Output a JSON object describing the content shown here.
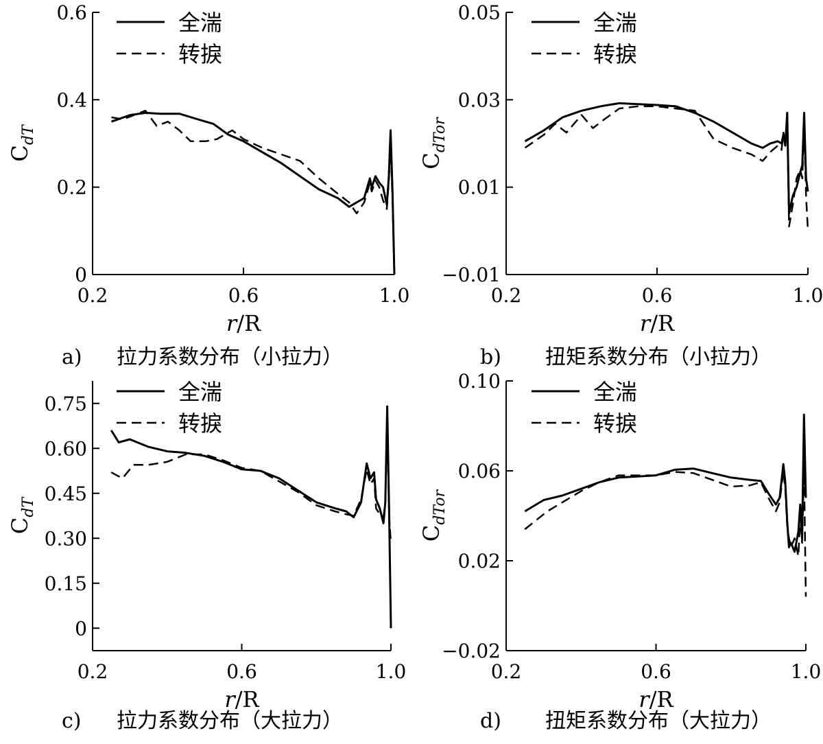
{
  "chart_data": [
    {
      "type": "line",
      "caption_letter": "a)",
      "caption": "拉力系数分布（小拉力）",
      "xlabel_italic": "r",
      "xlabel_rest": "/R",
      "ylabel_main": "C",
      "ylabel_sub": "dT",
      "xlim": [
        0.2,
        1.0
      ],
      "ylim": [
        0,
        0.6
      ],
      "xticks": [
        "0.2",
        "0.6",
        "1.0"
      ],
      "xtick_values": [
        0.2,
        0.6,
        1.0
      ],
      "yticks": [
        "0",
        "0.2",
        "0.4",
        "0.6"
      ],
      "ytick_values": [
        0,
        0.2,
        0.4,
        0.6
      ],
      "legend": [
        "全湍",
        "转捩"
      ],
      "series": [
        {
          "name": "全湍",
          "style": "solid",
          "x": [
            0.25,
            0.3,
            0.34,
            0.38,
            0.43,
            0.48,
            0.52,
            0.56,
            0.6,
            0.65,
            0.7,
            0.75,
            0.8,
            0.85,
            0.88,
            0.9,
            0.92,
            0.935,
            0.94,
            0.95,
            0.96,
            0.97,
            0.98,
            0.985,
            0.99,
            0.995,
            1.0
          ],
          "y": [
            0.35,
            0.365,
            0.37,
            0.368,
            0.368,
            0.355,
            0.345,
            0.32,
            0.305,
            0.28,
            0.255,
            0.225,
            0.195,
            0.175,
            0.155,
            0.165,
            0.175,
            0.22,
            0.2,
            0.225,
            0.21,
            0.2,
            0.16,
            0.22,
            0.33,
            0.19,
            0.0
          ]
        },
        {
          "name": "转捩",
          "style": "dash",
          "x": [
            0.25,
            0.28,
            0.31,
            0.34,
            0.37,
            0.4,
            0.43,
            0.46,
            0.5,
            0.53,
            0.57,
            0.6,
            0.65,
            0.7,
            0.75,
            0.8,
            0.85,
            0.88,
            0.9,
            0.92,
            0.935,
            0.94,
            0.95,
            0.96,
            0.97,
            0.98,
            0.985,
            0.99,
            0.995,
            1.0
          ],
          "y": [
            0.36,
            0.355,
            0.365,
            0.375,
            0.34,
            0.35,
            0.33,
            0.305,
            0.305,
            0.31,
            0.33,
            0.31,
            0.29,
            0.275,
            0.26,
            0.22,
            0.185,
            0.165,
            0.14,
            0.165,
            0.21,
            0.19,
            0.215,
            0.2,
            0.17,
            0.15,
            0.21,
            0.3,
            0.17,
            0.0
          ]
        }
      ]
    },
    {
      "type": "line",
      "caption_letter": "b)",
      "caption": "扭矩系数分布（小拉力）",
      "xlabel_italic": "r",
      "xlabel_rest": "/R",
      "ylabel_main": "C",
      "ylabel_sub": "dTor",
      "xlim": [
        0.2,
        1.0
      ],
      "ylim": [
        -0.01,
        0.05
      ],
      "xticks": [
        "0.2",
        "0.6",
        "1.0"
      ],
      "xtick_values": [
        0.2,
        0.6,
        1.0
      ],
      "yticks": [
        "−0.01",
        "0.01",
        "0.03",
        "0.05"
      ],
      "ytick_values": [
        -0.01,
        0.01,
        0.03,
        0.05
      ],
      "legend": [
        "全湍",
        "转捩"
      ],
      "series": [
        {
          "name": "全湍",
          "style": "solid",
          "x": [
            0.25,
            0.3,
            0.35,
            0.4,
            0.45,
            0.5,
            0.55,
            0.6,
            0.65,
            0.7,
            0.75,
            0.8,
            0.85,
            0.88,
            0.9,
            0.92,
            0.93,
            0.935,
            0.94,
            0.945,
            0.95,
            0.96,
            0.97,
            0.98,
            0.985,
            0.99,
            0.995,
            1.0
          ],
          "y": [
            0.0205,
            0.023,
            0.026,
            0.0275,
            0.0285,
            0.0292,
            0.029,
            0.0288,
            0.0285,
            0.027,
            0.025,
            0.0225,
            0.02,
            0.019,
            0.02,
            0.0205,
            0.02,
            0.022,
            0.0195,
            0.027,
            0.004,
            0.008,
            0.01,
            0.0135,
            0.015,
            0.027,
            0.012,
            0.009
          ]
        },
        {
          "name": "转捩",
          "style": "dash",
          "x": [
            0.25,
            0.3,
            0.33,
            0.36,
            0.4,
            0.43,
            0.46,
            0.5,
            0.55,
            0.6,
            0.65,
            0.7,
            0.75,
            0.8,
            0.85,
            0.88,
            0.9,
            0.92,
            0.93,
            0.935,
            0.94,
            0.945,
            0.95,
            0.96,
            0.97,
            0.98,
            0.985,
            0.99,
            0.995,
            1.0
          ],
          "y": [
            0.019,
            0.022,
            0.0245,
            0.0225,
            0.0265,
            0.0235,
            0.0255,
            0.028,
            0.0285,
            0.0285,
            0.028,
            0.0275,
            0.021,
            0.019,
            0.0175,
            0.016,
            0.018,
            0.0195,
            0.0185,
            0.0225,
            0.0205,
            0.025,
            0.001,
            0.006,
            0.012,
            0.014,
            0.012,
            0.024,
            0.008,
            0.0
          ]
        }
      ]
    },
    {
      "type": "line",
      "caption_letter": "c)",
      "caption": "拉力系数分布（大拉力）",
      "xlabel_italic": "r",
      "xlabel_rest": "/R",
      "ylabel_main": "C",
      "ylabel_sub": "dT",
      "xlim": [
        0.2,
        1.0
      ],
      "ylim": [
        -0.075,
        0.825
      ],
      "xticks": [
        "0.2",
        "0.6",
        "1.0"
      ],
      "xtick_values": [
        0.2,
        0.6,
        1.0
      ],
      "yticks": [
        "0",
        "0.15",
        "0.30",
        "0.45",
        "0.60",
        "0.75"
      ],
      "ytick_values": [
        0,
        0.15,
        0.3,
        0.45,
        0.6,
        0.75
      ],
      "legend": [
        "全湍",
        "转捩"
      ],
      "series": [
        {
          "name": "全湍",
          "style": "solid",
          "x": [
            0.25,
            0.27,
            0.3,
            0.35,
            0.4,
            0.45,
            0.5,
            0.55,
            0.6,
            0.65,
            0.7,
            0.75,
            0.8,
            0.85,
            0.88,
            0.9,
            0.92,
            0.935,
            0.945,
            0.955,
            0.96,
            0.97,
            0.98,
            0.985,
            0.99,
            0.995,
            1.0
          ],
          "y": [
            0.66,
            0.62,
            0.63,
            0.605,
            0.59,
            0.585,
            0.575,
            0.555,
            0.53,
            0.525,
            0.5,
            0.46,
            0.42,
            0.4,
            0.39,
            0.37,
            0.42,
            0.55,
            0.5,
            0.52,
            0.43,
            0.4,
            0.35,
            0.42,
            0.74,
            0.4,
            0.0
          ]
        },
        {
          "name": "转捩",
          "style": "dash",
          "x": [
            0.25,
            0.28,
            0.31,
            0.35,
            0.4,
            0.45,
            0.5,
            0.55,
            0.6,
            0.65,
            0.7,
            0.75,
            0.8,
            0.85,
            0.88,
            0.9,
            0.92,
            0.935,
            0.945,
            0.955,
            0.96,
            0.97,
            0.98,
            0.985,
            0.99,
            0.995,
            1.0
          ],
          "y": [
            0.52,
            0.5,
            0.545,
            0.545,
            0.555,
            0.58,
            0.58,
            0.56,
            0.535,
            0.525,
            0.49,
            0.455,
            0.41,
            0.39,
            0.38,
            0.375,
            0.43,
            0.53,
            0.48,
            0.5,
            0.4,
            0.38,
            0.37,
            0.42,
            0.7,
            0.38,
            0.28
          ]
        }
      ]
    },
    {
      "type": "line",
      "caption_letter": "d)",
      "caption": "扭矩系数分布（大拉力）",
      "xlabel_italic": "r",
      "xlabel_rest": "/R",
      "ylabel_main": "C",
      "ylabel_sub": "dTor",
      "xlim": [
        0.2,
        1.0
      ],
      "ylim": [
        -0.02,
        0.1
      ],
      "xticks": [
        "0.2",
        "0.6",
        "1.0"
      ],
      "xtick_values": [
        0.2,
        0.6,
        1.0
      ],
      "yticks": [
        "−0.02",
        "0.02",
        "0.06",
        "0.10"
      ],
      "ytick_values": [
        -0.02,
        0.02,
        0.06,
        0.1
      ],
      "legend": [
        "全湍",
        "转捩"
      ],
      "series": [
        {
          "name": "全湍",
          "style": "solid",
          "x": [
            0.25,
            0.3,
            0.35,
            0.4,
            0.45,
            0.5,
            0.55,
            0.6,
            0.65,
            0.7,
            0.75,
            0.8,
            0.85,
            0.88,
            0.9,
            0.92,
            0.93,
            0.94,
            0.945,
            0.95,
            0.955,
            0.96,
            0.97,
            0.98,
            0.985,
            0.99,
            0.995,
            1.0
          ],
          "y": [
            0.042,
            0.047,
            0.049,
            0.052,
            0.055,
            0.057,
            0.0575,
            0.058,
            0.0605,
            0.061,
            0.059,
            0.057,
            0.056,
            0.0555,
            0.05,
            0.045,
            0.048,
            0.063,
            0.055,
            0.038,
            0.026,
            0.028,
            0.024,
            0.033,
            0.045,
            0.03,
            0.085,
            0.048
          ]
        },
        {
          "name": "转捩",
          "style": "dash",
          "x": [
            0.25,
            0.28,
            0.31,
            0.35,
            0.4,
            0.45,
            0.5,
            0.55,
            0.6,
            0.65,
            0.7,
            0.75,
            0.8,
            0.85,
            0.88,
            0.9,
            0.92,
            0.93,
            0.94,
            0.945,
            0.95,
            0.955,
            0.96,
            0.97,
            0.98,
            0.985,
            0.99,
            0.995,
            1.0
          ],
          "y": [
            0.034,
            0.038,
            0.042,
            0.046,
            0.051,
            0.055,
            0.058,
            0.058,
            0.058,
            0.0595,
            0.059,
            0.056,
            0.053,
            0.0535,
            0.055,
            0.048,
            0.042,
            0.046,
            0.06,
            0.052,
            0.036,
            0.03,
            0.026,
            0.03,
            0.022,
            0.04,
            0.028,
            0.06,
            0.004
          ]
        }
      ]
    }
  ]
}
